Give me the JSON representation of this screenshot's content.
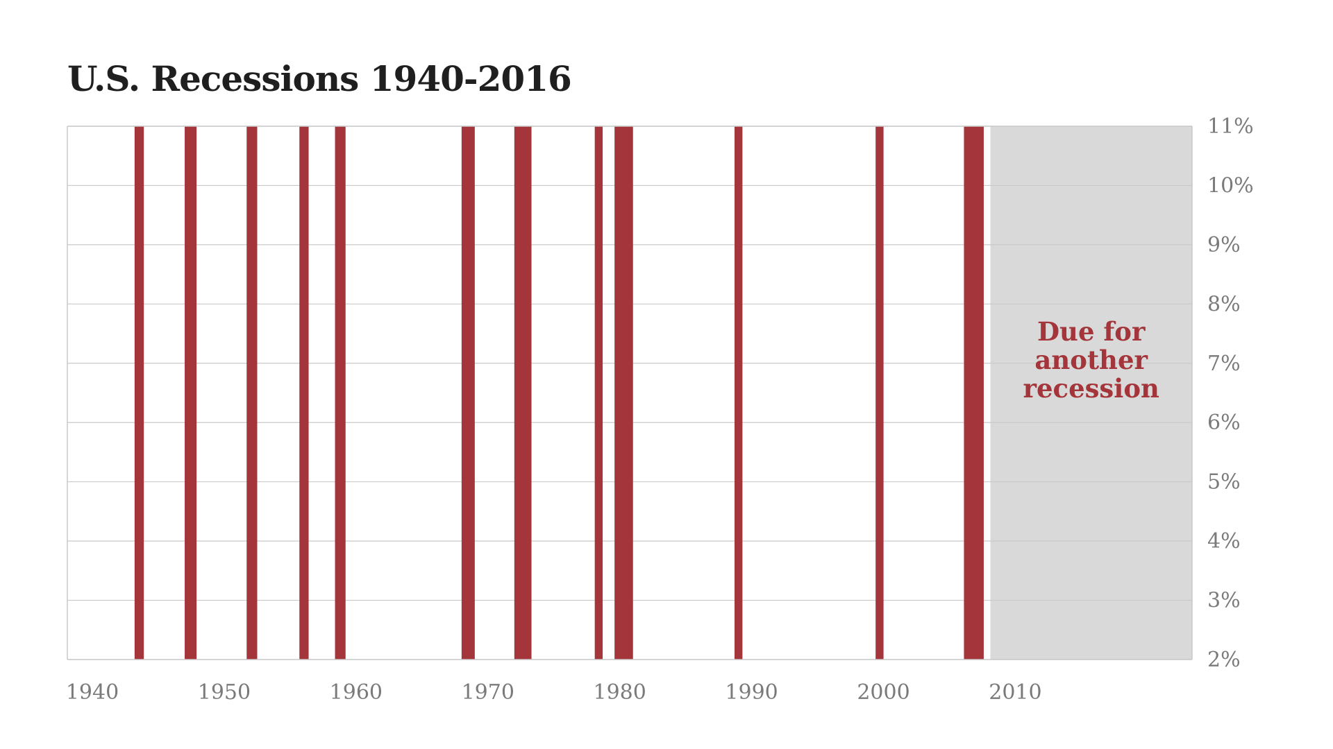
{
  "title": "U.S. Recessions 1940-2016",
  "colors": {
    "recession": "#a4353a",
    "future_shade": "#d9d9d9",
    "gridline": "#c9c9c9",
    "frame": "#c9c9c9",
    "tick_text": "#7a7a7a",
    "annotation_text": "#a4353a"
  },
  "chart_data": {
    "type": "bar",
    "title": "U.S. Recessions 1940-2016",
    "xlabel": "",
    "ylabel": "",
    "xlim": [
      1940,
      2025.3
    ],
    "ylim": [
      2,
      11
    ],
    "x_ticks": [
      1940,
      1950,
      1960,
      1970,
      1980,
      1990,
      2000,
      2010
    ],
    "x_tick_labels": [
      "1940",
      "1950",
      "1960",
      "1970",
      "1980",
      "1990",
      "2000",
      "2010"
    ],
    "y_ticks": [
      2,
      3,
      4,
      5,
      6,
      7,
      8,
      9,
      10,
      11
    ],
    "y_tick_labels": [
      "2%",
      "3%",
      "4%",
      "5%",
      "6%",
      "7%",
      "8%",
      "9%",
      "10%",
      "11%"
    ],
    "grid": true,
    "recessions": [
      {
        "start": 1945.1,
        "end": 1945.8
      },
      {
        "start": 1948.9,
        "end": 1949.8
      },
      {
        "start": 1953.6,
        "end": 1954.4
      },
      {
        "start": 1957.6,
        "end": 1958.3
      },
      {
        "start": 1960.3,
        "end": 1961.1
      },
      {
        "start": 1969.9,
        "end": 1970.9
      },
      {
        "start": 1973.9,
        "end": 1975.2
      },
      {
        "start": 1980.0,
        "end": 1980.6
      },
      {
        "start": 1981.5,
        "end": 1982.9
      },
      {
        "start": 1990.6,
        "end": 1991.2
      },
      {
        "start": 2001.3,
        "end": 2001.9
      },
      {
        "start": 2008.0,
        "end": 2009.5
      }
    ],
    "future_region": {
      "start": 2010,
      "end": 2025.3
    },
    "annotation": {
      "lines": [
        "Due for",
        "another",
        "recession"
      ]
    }
  }
}
